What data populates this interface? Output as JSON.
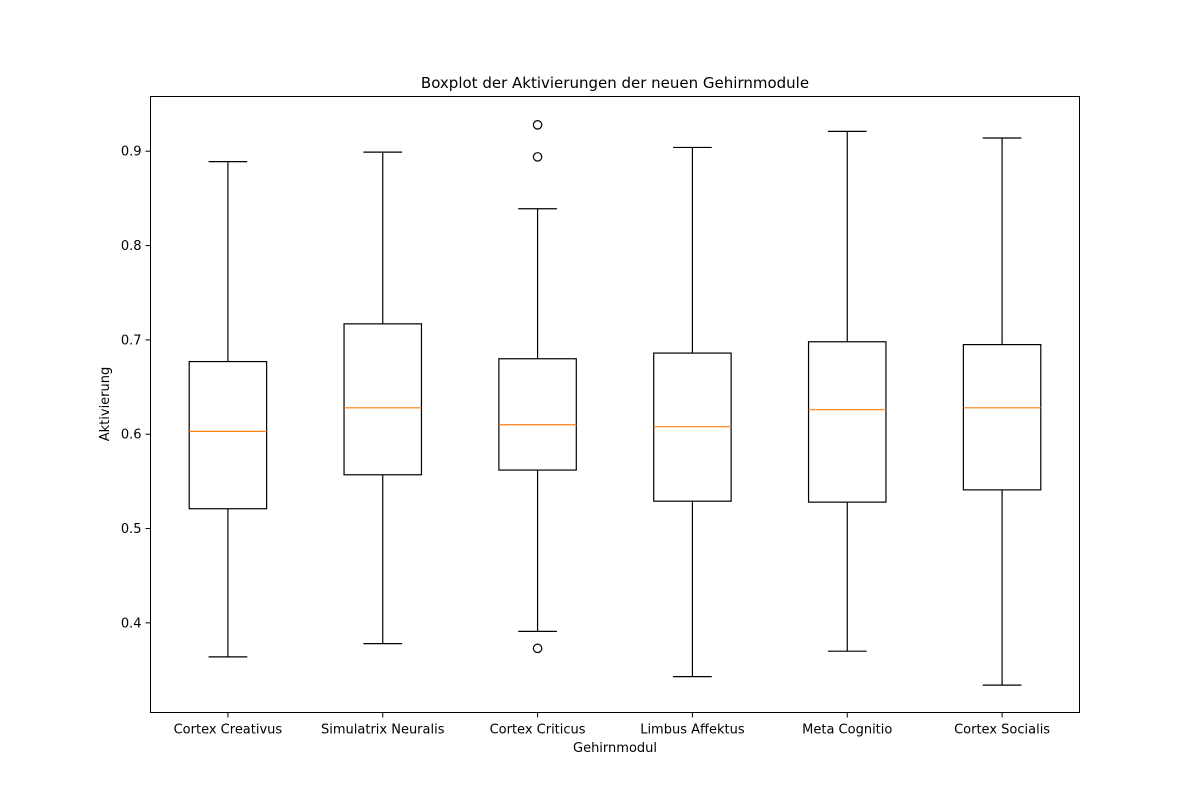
{
  "chart_data": {
    "type": "boxplot",
    "title": "Boxplot der Aktivierungen der neuen Gehirnmodule",
    "xlabel": "Gehirnmodul",
    "ylabel": "Aktivierung",
    "ylim": [
      0.305,
      0.958
    ],
    "yticks": [
      0.4,
      0.5,
      0.6,
      0.7,
      0.8,
      0.9
    ],
    "ytick_labels": [
      "0.4",
      "0.5",
      "0.6",
      "0.7",
      "0.8",
      "0.9"
    ],
    "grid": false,
    "colors": {
      "box": "#000000",
      "median": "#ff7f0e",
      "frame": "#000000"
    },
    "categories": [
      "Cortex Creativus",
      "Simulatrix Neuralis",
      "Cortex Criticus",
      "Limbus Affektus",
      "Meta Cognitio",
      "Cortex Socialis"
    ],
    "boxes": [
      {
        "whisker_low": 0.364,
        "q1": 0.521,
        "median": 0.603,
        "q3": 0.677,
        "whisker_high": 0.889,
        "outliers": []
      },
      {
        "whisker_low": 0.378,
        "q1": 0.557,
        "median": 0.628,
        "q3": 0.717,
        "whisker_high": 0.899,
        "outliers": []
      },
      {
        "whisker_low": 0.391,
        "q1": 0.562,
        "median": 0.61,
        "q3": 0.68,
        "whisker_high": 0.839,
        "outliers": [
          0.928,
          0.894,
          0.373
        ]
      },
      {
        "whisker_low": 0.343,
        "q1": 0.529,
        "median": 0.608,
        "q3": 0.686,
        "whisker_high": 0.904,
        "outliers": []
      },
      {
        "whisker_low": 0.37,
        "q1": 0.528,
        "median": 0.626,
        "q3": 0.698,
        "whisker_high": 0.921,
        "outliers": []
      },
      {
        "whisker_low": 0.334,
        "q1": 0.541,
        "median": 0.628,
        "q3": 0.695,
        "whisker_high": 0.914,
        "outliers": []
      }
    ]
  }
}
